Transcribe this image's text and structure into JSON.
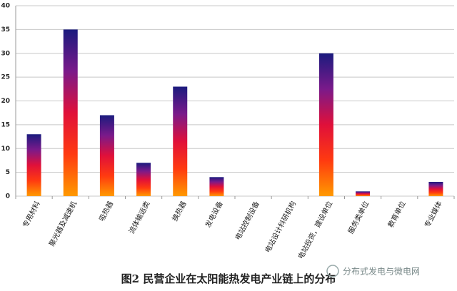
{
  "chart_data": {
    "type": "bar",
    "title": "图2  民营企业在太阳能热发电产业链上的分布",
    "watermark": "分布式发电与微电网",
    "categories": [
      "专用材料",
      "聚光器及减速机",
      "吸热器",
      "流体输运类",
      "换热器",
      "发电设备",
      "电站控制设备",
      "电站设计科研机构",
      "电站投资，建设单位",
      "服务类单位",
      "教育单位",
      "专业媒体"
    ],
    "values": [
      13,
      35,
      17,
      7,
      23,
      4,
      0,
      0,
      30,
      1,
      0,
      3
    ],
    "gradient": [
      "#1b1b7e",
      "#7a1a8a",
      "#e0103a",
      "#ff3a10",
      "#ff9a00"
    ],
    "ylim": [
      0,
      40
    ],
    "yticks": [
      0,
      5,
      10,
      15,
      20,
      25,
      30,
      35,
      40
    ],
    "grid": true
  }
}
